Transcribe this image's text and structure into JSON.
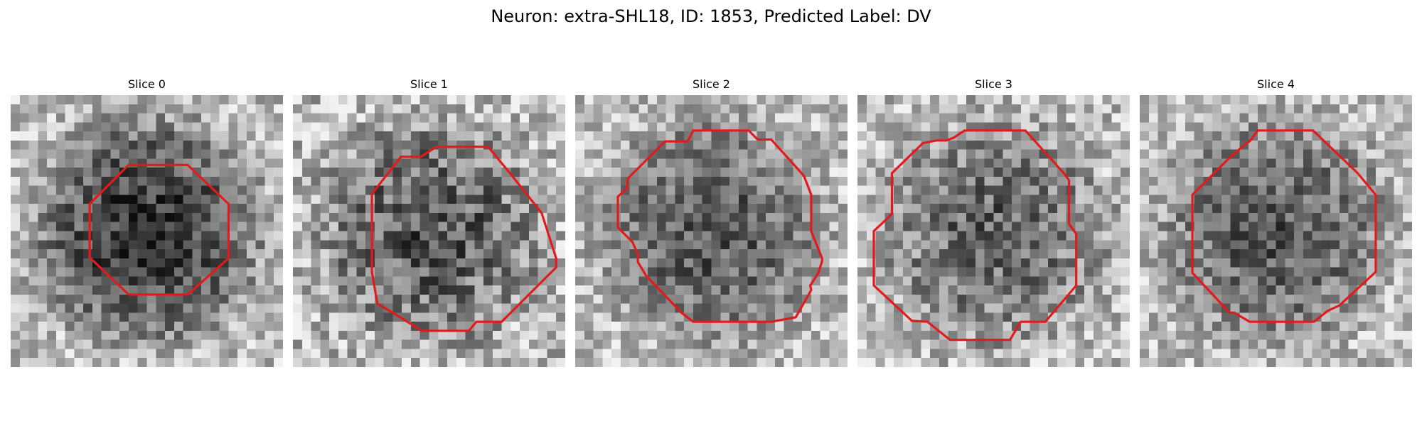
{
  "figure": {
    "title": "Neuron: extra-SHL18, ID: 1853, Predicted Label: DV"
  },
  "outline_color": "#e31a1c",
  "image_grid": "30x30 grayscale microscopy patch",
  "panels": [
    {
      "title": "Slice 0",
      "contour": [
        [
          13,
          7.7
        ],
        [
          19.5,
          7.7
        ],
        [
          24,
          12
        ],
        [
          24,
          18
        ],
        [
          19.5,
          22
        ],
        [
          13,
          22
        ],
        [
          8.7,
          17.9
        ],
        [
          8.7,
          12
        ]
      ],
      "dark_center": 0.45,
      "contrast": 1.0
    },
    {
      "title": "Slice 1",
      "contour": [
        [
          15.8,
          5.7
        ],
        [
          21.5,
          5.7
        ],
        [
          23.9,
          8.6
        ],
        [
          27.4,
          13
        ],
        [
          29,
          18
        ],
        [
          29,
          19
        ],
        [
          23,
          25
        ],
        [
          20.2,
          25
        ],
        [
          19.4,
          26
        ],
        [
          14.2,
          26
        ],
        [
          11.8,
          24.5
        ],
        [
          9.3,
          23
        ],
        [
          8.7,
          19.5
        ],
        [
          8.7,
          10.9
        ],
        [
          11.9,
          6.8
        ],
        [
          14.1,
          6.8
        ]
      ],
      "dark_center": 0.3,
      "contrast": 1.2
    },
    {
      "title": "Slice 2",
      "contour": [
        [
          13,
          3.9
        ],
        [
          19.1,
          3.9
        ],
        [
          20.1,
          4.9
        ],
        [
          21.6,
          4.9
        ],
        [
          25.2,
          8.9
        ],
        [
          26,
          11
        ],
        [
          26,
          15
        ],
        [
          27.2,
          18
        ],
        [
          27.2,
          18.3
        ],
        [
          26.8,
          19.6
        ],
        [
          25.9,
          21
        ],
        [
          26,
          21.5
        ],
        [
          24.3,
          24.5
        ],
        [
          21.6,
          25
        ],
        [
          20.3,
          25
        ],
        [
          13,
          25
        ],
        [
          11.7,
          24
        ],
        [
          7.8,
          19.9
        ],
        [
          6.9,
          18.4
        ],
        [
          6.9,
          17.5
        ],
        [
          6.3,
          16.2
        ],
        [
          4.7,
          14.6
        ],
        [
          4.7,
          11.2
        ],
        [
          5.7,
          10.3
        ],
        [
          5.8,
          9.2
        ],
        [
          9.9,
          5.1
        ],
        [
          12.4,
          5.1
        ]
      ],
      "dark_center": 0.3,
      "contrast": 1.0
    },
    {
      "title": "Slice 3",
      "contour": [
        [
          13,
          3.9
        ],
        [
          18.5,
          3.9
        ],
        [
          22.9,
          8.8
        ],
        [
          23.3,
          9.4
        ],
        [
          23.3,
          14.2
        ],
        [
          24.1,
          15.3
        ],
        [
          24.1,
          21
        ],
        [
          20.7,
          25
        ],
        [
          18,
          25
        ],
        [
          16.8,
          27
        ],
        [
          10.2,
          27
        ],
        [
          7.7,
          25
        ],
        [
          6,
          24.9
        ],
        [
          1.8,
          21
        ],
        [
          1.8,
          15
        ],
        [
          3.3,
          13.6
        ],
        [
          3.8,
          13.1
        ],
        [
          3.8,
          8.6
        ],
        [
          7.2,
          5.3
        ],
        [
          8.7,
          5
        ],
        [
          9.8,
          5
        ],
        [
          10.6,
          4.7
        ],
        [
          11.8,
          3.9
        ]
      ],
      "dark_center": 0.25,
      "contrast": 1.1
    },
    {
      "title": "Slice 4",
      "contour": [
        [
          13,
          3.9
        ],
        [
          19.1,
          3.9
        ],
        [
          24,
          8.6
        ],
        [
          26,
          11
        ],
        [
          26,
          19.5
        ],
        [
          22,
          23.2
        ],
        [
          20.7,
          23.8
        ],
        [
          19.2,
          25
        ],
        [
          12.1,
          25
        ],
        [
          10.4,
          24
        ],
        [
          9.9,
          24
        ],
        [
          5.8,
          19.6
        ],
        [
          5.8,
          11
        ],
        [
          9.9,
          6.9
        ],
        [
          11.4,
          5.6
        ],
        [
          12.2,
          5
        ]
      ],
      "dark_center": 0.3,
      "contrast": 1.0
    }
  ]
}
